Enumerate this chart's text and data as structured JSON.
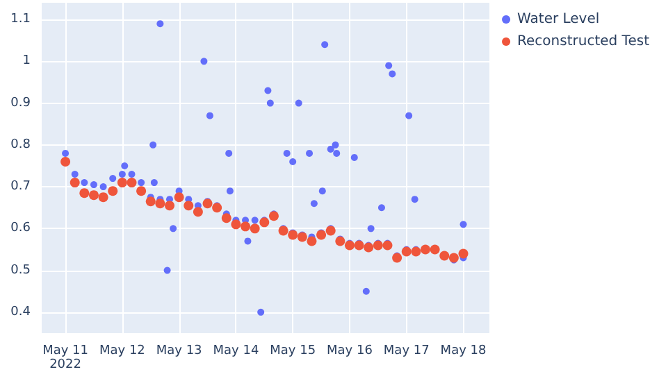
{
  "chart_data": {
    "type": "scatter",
    "marker": "circle",
    "grid": true,
    "legend": "top right",
    "xlim": [
      "2022-05-10T14:00",
      "2022-05-18T11:00"
    ],
    "xticks": [
      {
        "value": "2022-05-11",
        "label": "May 11\n2022"
      },
      {
        "value": "2022-05-12",
        "label": "May 12"
      },
      {
        "value": "2022-05-13",
        "label": "May 13"
      },
      {
        "value": "2022-05-14",
        "label": "May 14"
      },
      {
        "value": "2022-05-15",
        "label": "May 15"
      },
      {
        "value": "2022-05-16",
        "label": "May 16"
      },
      {
        "value": "2022-05-17",
        "label": "May 17"
      },
      {
        "value": "2022-05-18",
        "label": "May 18"
      }
    ],
    "ylim": [
      0.35,
      1.14
    ],
    "yticks": [
      0.4,
      0.5,
      0.6,
      0.7,
      0.8,
      0.9,
      1,
      1.1
    ],
    "series": [
      {
        "name": "Water Level",
        "color": "#636efa",
        "x": [
          "2022-05-11T00:00",
          "2022-05-11T04:00",
          "2022-05-11T08:00",
          "2022-05-11T12:00",
          "2022-05-11T16:00",
          "2022-05-11T20:00",
          "2022-05-12T00:00",
          "2022-05-12T04:00",
          "2022-05-12T08:00",
          "2022-05-12T12:00",
          "2022-05-12T16:00",
          "2022-05-12T20:00",
          "2022-05-13T00:00",
          "2022-05-13T04:00",
          "2022-05-13T08:00",
          "2022-05-13T12:00",
          "2022-05-13T16:00",
          "2022-05-13T20:00",
          "2022-05-14T00:00",
          "2022-05-14T04:00",
          "2022-05-14T08:00",
          "2022-05-14T12:00",
          "2022-05-14T16:00",
          "2022-05-14T20:00",
          "2022-05-15T00:00",
          "2022-05-15T04:00",
          "2022-05-15T08:00",
          "2022-05-15T12:00",
          "2022-05-15T16:00",
          "2022-05-15T20:00",
          "2022-05-16T00:00",
          "2022-05-16T04:00",
          "2022-05-16T08:00",
          "2022-05-16T12:00",
          "2022-05-16T16:00",
          "2022-05-16T20:00",
          "2022-05-17T00:00",
          "2022-05-17T04:00",
          "2022-05-17T08:00",
          "2022-05-17T12:00",
          "2022-05-17T16:00",
          "2022-05-17T20:00",
          "2022-05-18T00:00",
          "2022-05-12T01:00",
          "2022-05-12T13:00",
          "2022-05-12T13:30",
          "2022-05-12T16:00",
          "2022-05-12T19:00",
          "2022-05-12T21:30",
          "2022-05-13T10:30",
          "2022-05-13T13:00",
          "2022-05-13T21:00",
          "2022-05-13T21:30",
          "2022-05-14T05:00",
          "2022-05-14T10:30",
          "2022-05-14T13:30",
          "2022-05-14T14:30",
          "2022-05-14T21:30",
          "2022-05-15T00:00",
          "2022-05-15T02:30",
          "2022-05-15T07:00",
          "2022-05-15T09:00",
          "2022-05-15T13:30",
          "2022-05-15T12:30",
          "2022-05-15T16:00",
          "2022-05-15T18:00",
          "2022-05-15T18:30",
          "2022-05-16T02:00",
          "2022-05-16T07:00",
          "2022-05-16T09:00",
          "2022-05-16T13:30",
          "2022-05-16T16:30",
          "2022-05-16T18:00",
          "2022-05-17T01:00",
          "2022-05-17T03:30",
          "2022-05-18T00:00"
        ],
        "values": [
          0.78,
          0.73,
          0.71,
          0.705,
          0.7,
          0.72,
          0.73,
          0.73,
          0.71,
          0.675,
          0.67,
          0.67,
          0.69,
          0.67,
          0.655,
          0.665,
          0.655,
          0.635,
          0.62,
          0.62,
          0.62,
          0.62,
          0.635,
          0.6,
          0.59,
          0.585,
          0.58,
          0.59,
          0.6,
          0.575,
          0.565,
          0.565,
          0.56,
          0.565,
          0.565,
          0.535,
          0.55,
          0.55,
          null,
          null,
          null,
          0.525,
          0.53,
          0.75,
          0.8,
          0.71,
          1.09,
          0.5,
          0.6,
          1,
          0.87,
          0.78,
          0.69,
          0.57,
          0.4,
          0.93,
          0.9,
          0.78,
          0.76,
          0.9,
          0.78,
          0.66,
          1.04,
          0.69,
          0.79,
          0.8,
          0.78,
          0.77,
          0.45,
          0.6,
          0.65,
          0.99,
          0.97,
          0.87,
          0.67,
          0.61
        ]
      },
      {
        "name": "Reconstructed Test",
        "color": "#ef553b",
        "x": [
          "2022-05-11T00:00",
          "2022-05-11T04:00",
          "2022-05-11T08:00",
          "2022-05-11T12:00",
          "2022-05-11T16:00",
          "2022-05-11T20:00",
          "2022-05-12T00:00",
          "2022-05-12T04:00",
          "2022-05-12T08:00",
          "2022-05-12T12:00",
          "2022-05-12T16:00",
          "2022-05-12T20:00",
          "2022-05-13T00:00",
          "2022-05-13T04:00",
          "2022-05-13T08:00",
          "2022-05-13T12:00",
          "2022-05-13T16:00",
          "2022-05-13T20:00",
          "2022-05-14T00:00",
          "2022-05-14T04:00",
          "2022-05-14T08:00",
          "2022-05-14T12:00",
          "2022-05-14T16:00",
          "2022-05-14T20:00",
          "2022-05-15T00:00",
          "2022-05-15T04:00",
          "2022-05-15T08:00",
          "2022-05-15T12:00",
          "2022-05-15T16:00",
          "2022-05-15T20:00",
          "2022-05-16T00:00",
          "2022-05-16T04:00",
          "2022-05-16T08:00",
          "2022-05-16T12:00",
          "2022-05-16T16:00",
          "2022-05-16T20:00",
          "2022-05-17T00:00",
          "2022-05-17T04:00",
          "2022-05-17T08:00",
          "2022-05-17T12:00",
          "2022-05-17T16:00",
          "2022-05-17T20:00",
          "2022-05-18T00:00"
        ],
        "values": [
          0.76,
          0.71,
          0.685,
          0.68,
          0.675,
          0.69,
          0.71,
          0.71,
          0.69,
          0.665,
          0.66,
          0.655,
          0.675,
          0.655,
          0.64,
          0.66,
          0.65,
          0.625,
          0.61,
          0.605,
          0.6,
          0.615,
          0.63,
          0.595,
          0.585,
          0.58,
          0.57,
          0.585,
          0.595,
          0.57,
          0.56,
          0.56,
          0.555,
          0.56,
          0.56,
          0.53,
          0.545,
          0.545,
          0.55,
          0.55,
          0.535,
          0.53,
          0.54
        ]
      }
    ]
  }
}
